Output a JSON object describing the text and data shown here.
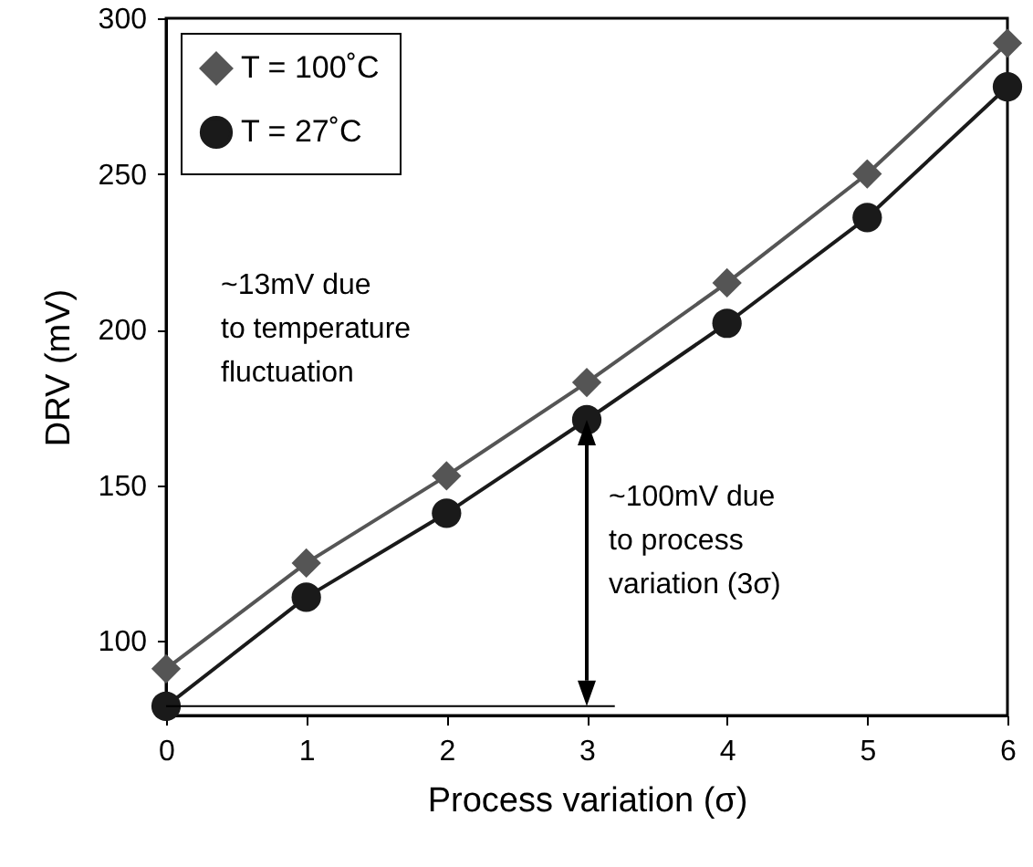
{
  "chart_data": {
    "type": "line",
    "xlabel": "Process variation (σ)",
    "ylabel": "DRV (mV)",
    "x": [
      0,
      1,
      2,
      3,
      4,
      5,
      6
    ],
    "series": [
      {
        "name": "T = 100˚C",
        "color": "#555555",
        "marker": "diamond",
        "values": [
          91,
          125,
          153,
          183,
          215,
          250,
          292
        ]
      },
      {
        "name": "T = 27˚C",
        "color": "#1a1a1a",
        "marker": "circle",
        "values": [
          79,
          114,
          141,
          171,
          202,
          236,
          278
        ]
      },
      {
        "type": "line",
        "color": "#000000",
        "marker": "none",
        "x": [
          0,
          3.2
        ],
        "values": [
          79,
          79
        ]
      }
    ],
    "xlim": [
      0,
      6
    ],
    "xticks": [
      0,
      1,
      2,
      3,
      4,
      5,
      6
    ],
    "ylim": [
      76,
      300
    ],
    "yticks": [
      100,
      150,
      200,
      250,
      300
    ],
    "grid": false,
    "legend": "top left",
    "line_style": "solid",
    "annotations": [
      "~13mV due\nto temperature\nfluctuation",
      {
        "text": "~100mV due\nto process\nvariation (3σ)",
        "x": 3,
        "y": 171
      }
    ]
  }
}
